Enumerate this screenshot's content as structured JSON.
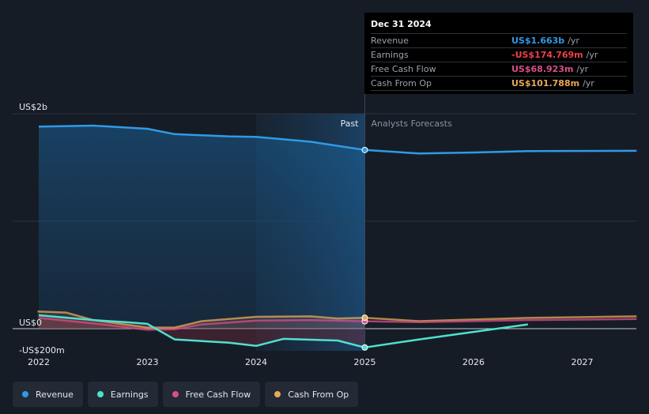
{
  "tooltip": {
    "date": "Dec 31 2024",
    "rows": [
      {
        "label": "Revenue",
        "value": "US$1.663b",
        "unit": "/yr",
        "color": "#2f9be6"
      },
      {
        "label": "Earnings",
        "value": "-US$174.769m",
        "unit": "/yr",
        "color": "#f0404a"
      },
      {
        "label": "Free Cash Flow",
        "value": "US$68.923m",
        "unit": "/yr",
        "color": "#d94f8a"
      },
      {
        "label": "Cash From Op",
        "value": "US$101.788m",
        "unit": "/yr",
        "color": "#e8a85a"
      }
    ]
  },
  "legend": [
    {
      "label": "Revenue",
      "color": "#2f9be6"
    },
    {
      "label": "Earnings",
      "color": "#4fe0cf"
    },
    {
      "label": "Free Cash Flow",
      "color": "#d94f8a"
    },
    {
      "label": "Cash From Op",
      "color": "#e8a85a"
    }
  ],
  "chart_data": {
    "type": "line",
    "title": "",
    "xlabel": "",
    "ylabel": "",
    "y_unit": "US$ millions",
    "ylim": [
      -200,
      2000
    ],
    "x_range": [
      2021.8,
      2027.5
    ],
    "y_tick_labels": [
      {
        "value": 2000,
        "label": "US$2b"
      },
      {
        "value": 0,
        "label": "US$0"
      },
      {
        "value": -200,
        "label": "-US$200m"
      }
    ],
    "x_tick_labels": [
      "2022",
      "2023",
      "2024",
      "2025",
      "2026",
      "2027"
    ],
    "x_ticks": [
      2022,
      2023,
      2024,
      2025,
      2026,
      2027
    ],
    "past_label": "Past",
    "forecast_label": "Analysts Forecasts",
    "divider_x": 2025.0,
    "highlight_start_x": 2024.0,
    "marker_x": 2025.0,
    "grid": true,
    "series": [
      {
        "name": "Revenue",
        "color": "#2f9be6",
        "past": [
          [
            2022.0,
            1880
          ],
          [
            2022.5,
            1890
          ],
          [
            2023.0,
            1860
          ],
          [
            2023.25,
            1810
          ],
          [
            2023.75,
            1790
          ],
          [
            2024.0,
            1785
          ],
          [
            2024.5,
            1740
          ],
          [
            2025.0,
            1663
          ]
        ],
        "forecast": [
          [
            2025.0,
            1663
          ],
          [
            2025.5,
            1630
          ],
          [
            2026.0,
            1640
          ],
          [
            2026.5,
            1652
          ],
          [
            2027.5,
            1655
          ]
        ]
      },
      {
        "name": "Earnings",
        "color": "#4fe0cf",
        "past": [
          [
            2022.0,
            125
          ],
          [
            2022.5,
            80
          ],
          [
            2022.8,
            60
          ],
          [
            2023.0,
            45
          ],
          [
            2023.25,
            -100
          ],
          [
            2023.75,
            -130
          ],
          [
            2024.0,
            -160
          ],
          [
            2024.25,
            -95
          ],
          [
            2024.75,
            -110
          ],
          [
            2025.0,
            -174.769
          ]
        ],
        "forecast": [
          [
            2025.0,
            -174.769
          ],
          [
            2025.5,
            -100
          ],
          [
            2026.0,
            -30
          ],
          [
            2026.5,
            40
          ]
        ]
      },
      {
        "name": "Free Cash Flow",
        "color": "#d94f8a",
        "past": [
          [
            2022.0,
            100
          ],
          [
            2022.5,
            50
          ],
          [
            2023.0,
            -10
          ],
          [
            2023.25,
            -5
          ],
          [
            2023.5,
            40
          ],
          [
            2024.0,
            75
          ],
          [
            2024.5,
            80
          ],
          [
            2025.0,
            68.923
          ]
        ],
        "forecast": [
          [
            2025.0,
            68.923
          ],
          [
            2025.5,
            60
          ],
          [
            2026.0,
            70
          ],
          [
            2026.5,
            80
          ],
          [
            2027.5,
            90
          ]
        ]
      },
      {
        "name": "Cash From Op",
        "color": "#e8a85a",
        "past": [
          [
            2021.99,
            160
          ],
          [
            2022.25,
            150
          ],
          [
            2022.5,
            80
          ],
          [
            2023.0,
            10
          ],
          [
            2023.25,
            10
          ],
          [
            2023.5,
            70
          ],
          [
            2024.0,
            110
          ],
          [
            2024.5,
            115
          ],
          [
            2024.75,
            95
          ],
          [
            2025.0,
            101.788
          ]
        ],
        "forecast": [
          [
            2025.0,
            101.788
          ],
          [
            2025.5,
            70
          ],
          [
            2026.0,
            85
          ],
          [
            2026.5,
            100
          ],
          [
            2027.5,
            115
          ]
        ]
      }
    ]
  }
}
